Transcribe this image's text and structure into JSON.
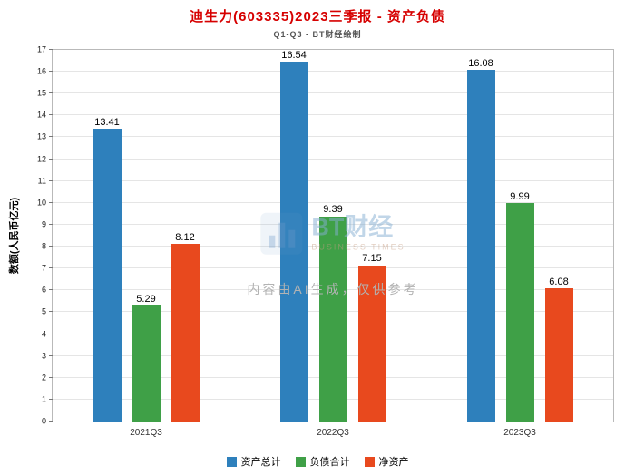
{
  "header": {
    "title": "迪生力(603335)2023三季报 - 资产负债",
    "title_color": "#d60000",
    "subtitle": "Q1-Q3 - BT财经绘制"
  },
  "chart_data": {
    "type": "bar",
    "categories": [
      "2021Q3",
      "2022Q3",
      "2023Q3"
    ],
    "series": [
      {
        "name": "资产总计",
        "color": "#2E80BC",
        "values": [
          13.41,
          16.54,
          16.08
        ]
      },
      {
        "name": "负债合计",
        "color": "#3FA047",
        "values": [
          5.29,
          9.39,
          9.99
        ]
      },
      {
        "name": "净资产",
        "color": "#E8491E",
        "values": [
          8.12,
          7.15,
          6.08
        ]
      }
    ],
    "ylabel": "数额(人民币亿元)",
    "ylim": [
      0,
      17
    ],
    "ytick_step": 1,
    "grid": true,
    "legend_position": "bottom"
  },
  "watermark": {
    "logo_text": "BT财经",
    "logo_subtext": "BUSINESS TIMES",
    "ai_note": "内容由AI生成，仅供参考"
  }
}
